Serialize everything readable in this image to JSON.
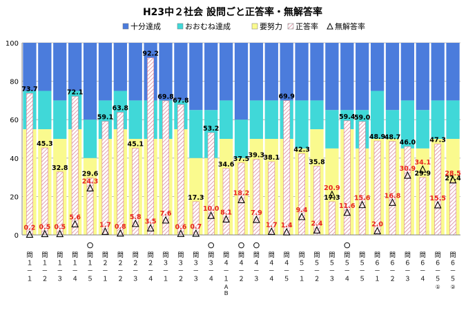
{
  "chart_data": {
    "type": "bar",
    "title": "H23中２社会 設問ごと正答率・無解答率",
    "ylim": [
      0,
      100
    ],
    "yticks": [
      0,
      20,
      40,
      60,
      80,
      100
    ],
    "grid": true,
    "legend_position": "top",
    "colors": {
      "full": "#4b7cdc",
      "mostly": "#40d8d8",
      "effort": "#fafa8e",
      "rate_fill": "#ffffff",
      "rate_hatch": "#d9869a",
      "nores_marker": "#000000",
      "rate_label": "#000000",
      "nores_label": "#e8241f"
    },
    "legend": [
      "十分達成",
      "おおむね達成",
      "要努力",
      "正答率",
      "無解答率"
    ],
    "categories": [
      {
        "circle": false,
        "text": "問１－１",
        "suffix": ""
      },
      {
        "circle": false,
        "text": "問１－２",
        "suffix": ""
      },
      {
        "circle": false,
        "text": "問１－３",
        "suffix": ""
      },
      {
        "circle": false,
        "text": "問１－４",
        "suffix": ""
      },
      {
        "circle": true,
        "text": "問１－５",
        "suffix": ""
      },
      {
        "circle": false,
        "text": "問２－１",
        "suffix": ""
      },
      {
        "circle": false,
        "text": "問２－２",
        "suffix": ""
      },
      {
        "circle": false,
        "text": "問２－３",
        "suffix": ""
      },
      {
        "circle": false,
        "text": "問２－４",
        "suffix": ""
      },
      {
        "circle": false,
        "text": "問３－１",
        "suffix": ""
      },
      {
        "circle": false,
        "text": "問３－２",
        "suffix": ""
      },
      {
        "circle": false,
        "text": "問３－３",
        "suffix": ""
      },
      {
        "circle": true,
        "text": "問３－４",
        "suffix": ""
      },
      {
        "circle": false,
        "text": "問４－１",
        "suffix": "Ａ Ｂ"
      },
      {
        "circle": true,
        "text": "問４－２",
        "suffix": ""
      },
      {
        "circle": true,
        "text": "問４－３",
        "suffix": ""
      },
      {
        "circle": false,
        "text": "問４－４",
        "suffix": ""
      },
      {
        "circle": false,
        "text": "問４－５",
        "suffix": ""
      },
      {
        "circle": false,
        "text": "問５－１",
        "suffix": ""
      },
      {
        "circle": false,
        "text": "問５－２",
        "suffix": ""
      },
      {
        "circle": false,
        "text": "問５－３",
        "suffix": ""
      },
      {
        "circle": true,
        "text": "問５－４",
        "suffix": ""
      },
      {
        "circle": false,
        "text": "問５－５",
        "suffix": ""
      },
      {
        "circle": false,
        "text": "問６－１",
        "suffix": ""
      },
      {
        "circle": false,
        "text": "問６－２",
        "suffix": ""
      },
      {
        "circle": false,
        "text": "問６－３",
        "suffix": ""
      },
      {
        "circle": false,
        "text": "問６－４",
        "suffix": ""
      },
      {
        "circle": false,
        "text": "問６－５",
        "suffix": "①"
      },
      {
        "circle": false,
        "text": "問６－５",
        "suffix": "②"
      }
    ],
    "effort_upper": [
      55,
      55,
      50,
      55,
      40,
      50,
      55,
      50,
      50,
      50,
      55,
      40,
      40,
      50,
      40,
      50,
      50,
      50,
      45,
      55,
      45,
      55,
      45,
      50,
      50,
      45,
      45,
      50,
      50
    ],
    "mostly_upper": [
      75,
      75,
      70,
      75,
      60,
      70,
      75,
      70,
      70,
      70,
      70,
      65,
      65,
      70,
      60,
      70,
      70,
      70,
      70,
      70,
      65,
      65,
      65,
      75,
      65,
      70,
      65,
      70,
      70
    ],
    "correct_rate": [
      73.7,
      45.3,
      32.8,
      72.1,
      29.6,
      59.1,
      63.8,
      45.1,
      92.2,
      69.8,
      67.8,
      17.3,
      53.2,
      34.6,
      37.5,
      39.3,
      38.1,
      69.9,
      42.3,
      35.8,
      17.3,
      59.4,
      59.0,
      48.9,
      48.7,
      46.0,
      29.9,
      47.3,
      27.4
    ],
    "correct_labels": [
      "73.7",
      "45.3",
      "32.8",
      "72.1",
      "29.6",
      "59.1",
      "63.8",
      "45.1",
      "92.2",
      "69.8",
      "67.8",
      "17.3",
      "53.2",
      "34.6",
      "37.5",
      "39.3",
      "38.1",
      "69.9",
      "42.3",
      "35.8",
      "17.3",
      "59.4",
      "59.0",
      "48.9",
      "48.7",
      "46.0",
      "29.9",
      "47.3",
      "27.4"
    ],
    "no_answer_rate": [
      0.2,
      0.5,
      0.5,
      5.6,
      24.3,
      1.7,
      0.8,
      5.8,
      3.5,
      7.6,
      0.6,
      0.7,
      10.0,
      8.1,
      18.2,
      7.9,
      1.7,
      1.4,
      9.4,
      2.4,
      20.9,
      11.6,
      15.6,
      2.0,
      16.8,
      30.9,
      34.1,
      15.5,
      28.5
    ],
    "no_answer_labels": [
      "0.2",
      "0.5",
      "0.5",
      "5.6",
      "24.3",
      "1.7",
      "0.8",
      "5.8",
      "3.5",
      "7.6",
      "0.6",
      "0.7",
      "10.0",
      "8.1",
      "18.2",
      "7.9",
      "1.7",
      "1.4",
      "9.4",
      "2.4",
      "20.9",
      "11.6",
      "15.6",
      "2.0",
      "16.8",
      "30.9",
      "34.1",
      "15.5",
      "28.5"
    ]
  }
}
